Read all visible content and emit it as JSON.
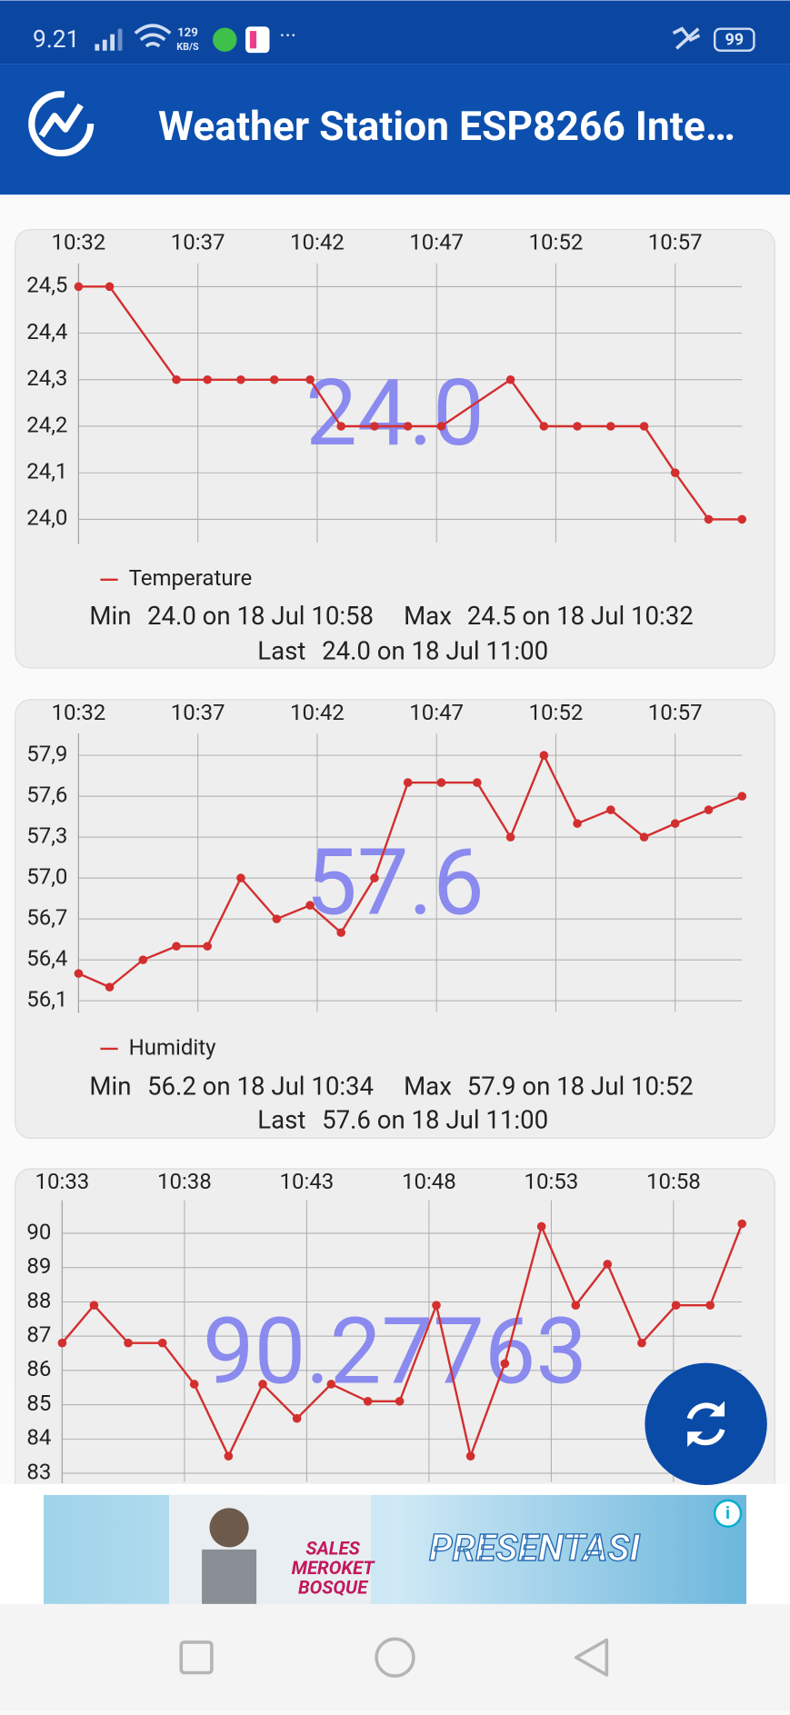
{
  "status_bar": {
    "time": "9.21",
    "net_speed": "129",
    "net_unit": "KB/S",
    "battery": "99"
  },
  "app_bar": {
    "title": "Weather Station ESP8266 Inte…"
  },
  "charts": [
    {
      "type": "line",
      "x": [
        32,
        33.3,
        36.1,
        37.4,
        38.8,
        40.2,
        41.7,
        43.0,
        44.4,
        45.8,
        47.2,
        50.1,
        51.5,
        52.9,
        54.3,
        55.7,
        57.0,
        58.4,
        59.8
      ],
      "xlim": [
        32,
        59.8
      ],
      "xticks": [
        {
          "value": 32,
          "label": "10:32"
        },
        {
          "value": 37,
          "label": "10:37"
        },
        {
          "value": 42,
          "label": "10:42"
        },
        {
          "value": 47,
          "label": "10:47"
        },
        {
          "value": 52,
          "label": "10:52"
        },
        {
          "value": 57,
          "label": "10:57"
        }
      ],
      "ylim": [
        23.95,
        24.55
      ],
      "yticks": [
        {
          "value": 24.0,
          "label": "24,0"
        },
        {
          "value": 24.1,
          "label": "24,1"
        },
        {
          "value": 24.2,
          "label": "24,2"
        },
        {
          "value": 24.3,
          "label": "24,3"
        },
        {
          "value": 24.4,
          "label": "24,4"
        },
        {
          "value": 24.5,
          "label": "24,5"
        }
      ],
      "grid": true,
      "series": [
        {
          "name": "Temperature",
          "color": "#d32f2f",
          "values": [
            24.5,
            24.5,
            24.3,
            24.3,
            24.3,
            24.3,
            24.3,
            24.2,
            24.2,
            24.2,
            24.2,
            24.3,
            24.2,
            24.2,
            24.2,
            24.2,
            24.1,
            24.0,
            24.0
          ]
        }
      ],
      "current_value": "24.0",
      "stats": [
        {
          "label": "Min",
          "text": "24.0 on 18 Jul 10:58"
        },
        {
          "label": "Max",
          "text": "24.5 on 18 Jul 10:32"
        },
        {
          "label": "Last",
          "text": "24.0 on 18 Jul 11:00"
        }
      ]
    },
    {
      "type": "line",
      "x": [
        32,
        33.3,
        34.7,
        36.1,
        37.4,
        38.8,
        40.3,
        41.7,
        43.0,
        44.4,
        45.8,
        47.2,
        48.7,
        50.1,
        51.5,
        52.9,
        54.3,
        55.7,
        57.0,
        58.4,
        59.8
      ],
      "xlim": [
        32,
        59.8
      ],
      "xticks": [
        {
          "value": 32,
          "label": "10:32"
        },
        {
          "value": 37,
          "label": "10:37"
        },
        {
          "value": 42,
          "label": "10:42"
        },
        {
          "value": 47,
          "label": "10:47"
        },
        {
          "value": 52,
          "label": "10:52"
        },
        {
          "value": 57,
          "label": "10:57"
        }
      ],
      "ylim": [
        56.02,
        58.06
      ],
      "yticks": [
        {
          "value": 56.1,
          "label": "56,1"
        },
        {
          "value": 56.4,
          "label": "56,4"
        },
        {
          "value": 56.7,
          "label": "56,7"
        },
        {
          "value": 57.0,
          "label": "57,0"
        },
        {
          "value": 57.3,
          "label": "57,3"
        },
        {
          "value": 57.6,
          "label": "57,6"
        },
        {
          "value": 57.9,
          "label": "57,9"
        }
      ],
      "grid": true,
      "series": [
        {
          "name": "Humidity",
          "color": "#d32f2f",
          "values": [
            56.3,
            56.2,
            56.4,
            56.5,
            56.5,
            57.0,
            56.7,
            56.8,
            56.6,
            57.0,
            57.7,
            57.7,
            57.7,
            57.3,
            57.9,
            57.4,
            57.5,
            57.3,
            57.4,
            57.5,
            57.6
          ]
        }
      ],
      "current_value": "57.6",
      "stats": [
        {
          "label": "Min",
          "text": "56.2 on 18 Jul 10:34"
        },
        {
          "label": "Max",
          "text": "57.9 on 18 Jul 10:52"
        },
        {
          "label": "Last",
          "text": "57.6 on 18 Jul 11:00"
        }
      ]
    },
    {
      "type": "line",
      "x": [
        33.0,
        34.3,
        35.7,
        37.1,
        38.4,
        39.8,
        41.2,
        42.6,
        44.0,
        45.5,
        46.8,
        48.3,
        49.7,
        51.1,
        52.6,
        54.0,
        55.3,
        56.7,
        58.1,
        59.5,
        60.8
      ],
      "xlim": [
        33,
        60.8
      ],
      "xticks": [
        {
          "value": 33,
          "label": "10:33"
        },
        {
          "value": 38,
          "label": "10:38"
        },
        {
          "value": 43,
          "label": "10:43"
        },
        {
          "value": 48,
          "label": "10:48"
        },
        {
          "value": 53,
          "label": "10:53"
        },
        {
          "value": 58,
          "label": "10:58"
        }
      ],
      "ylim": [
        82.75,
        90.96
      ],
      "yticks": [
        83,
        84,
        85,
        86,
        87,
        88,
        89,
        90
      ],
      "grid": true,
      "series": [
        {
          "color": "#d32f2f",
          "values": [
            86.8,
            87.9,
            86.8,
            86.8,
            85.6,
            83.5,
            85.6,
            84.6,
            85.6,
            85.1,
            85.1,
            87.9,
            83.5,
            86.2,
            90.2,
            87.9,
            89.1,
            86.8,
            87.9,
            87.9,
            90.27763
          ]
        }
      ],
      "current_value": "90.27763"
    }
  ],
  "ad": {
    "texts": [
      "SALES",
      "MEROKET",
      "BOSQUE",
      "PRESENTASI"
    ]
  }
}
